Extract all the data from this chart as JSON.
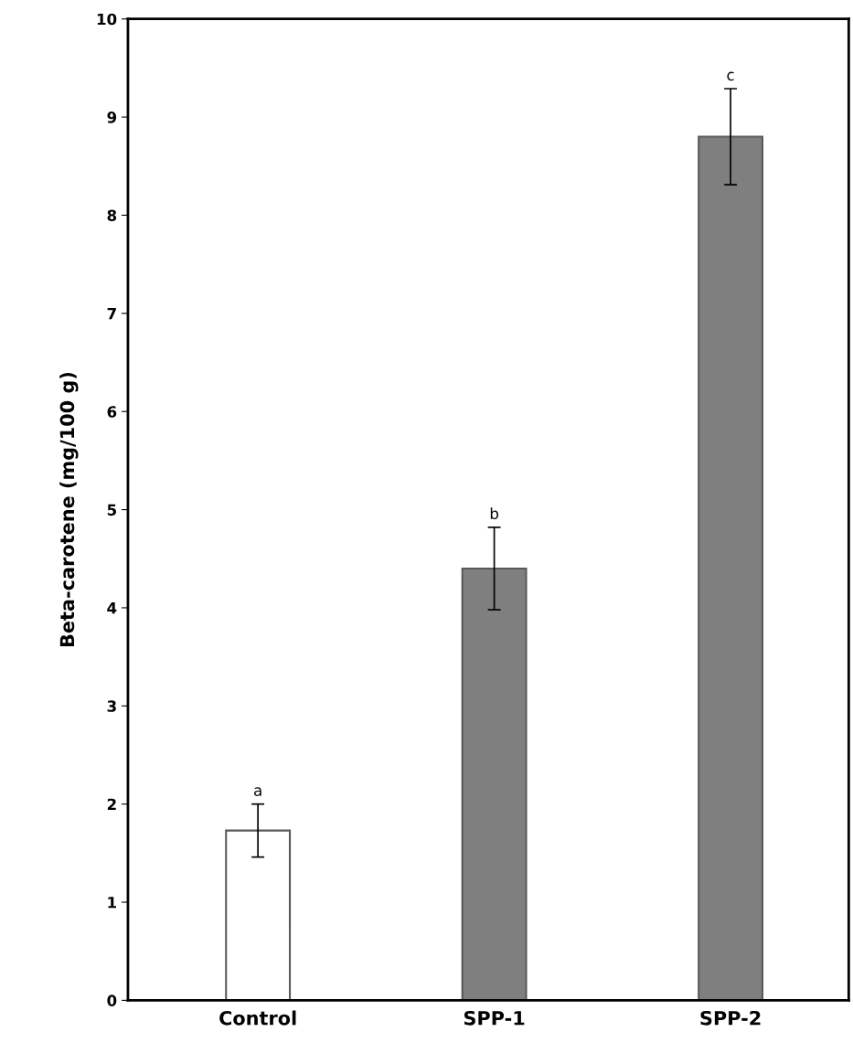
{
  "chart_data": {
    "type": "bar",
    "ylabel": "Beta-carotene (mg/100 g)",
    "categories": [
      "Control",
      "SPP-1",
      "SPP-2"
    ],
    "values": [
      1.73,
      4.4,
      8.8
    ],
    "errors": [
      0.27,
      0.42,
      0.49
    ],
    "colors": [
      "#ffffff",
      "#7f7f7f",
      "#7f7f7f"
    ],
    "ylim": [
      0,
      10
    ],
    "yticks": [
      0,
      1,
      2,
      3,
      4,
      5,
      6,
      7,
      8,
      9,
      10
    ],
    "annotations": [
      {
        "text": "a",
        "x": "Control",
        "y": 2.0
      },
      {
        "text": "b",
        "x": "SPP-1",
        "y": 4.82
      },
      {
        "text": "c",
        "x": "SPP-2",
        "y": 9.29
      }
    ],
    "grid": false,
    "legend": false
  }
}
